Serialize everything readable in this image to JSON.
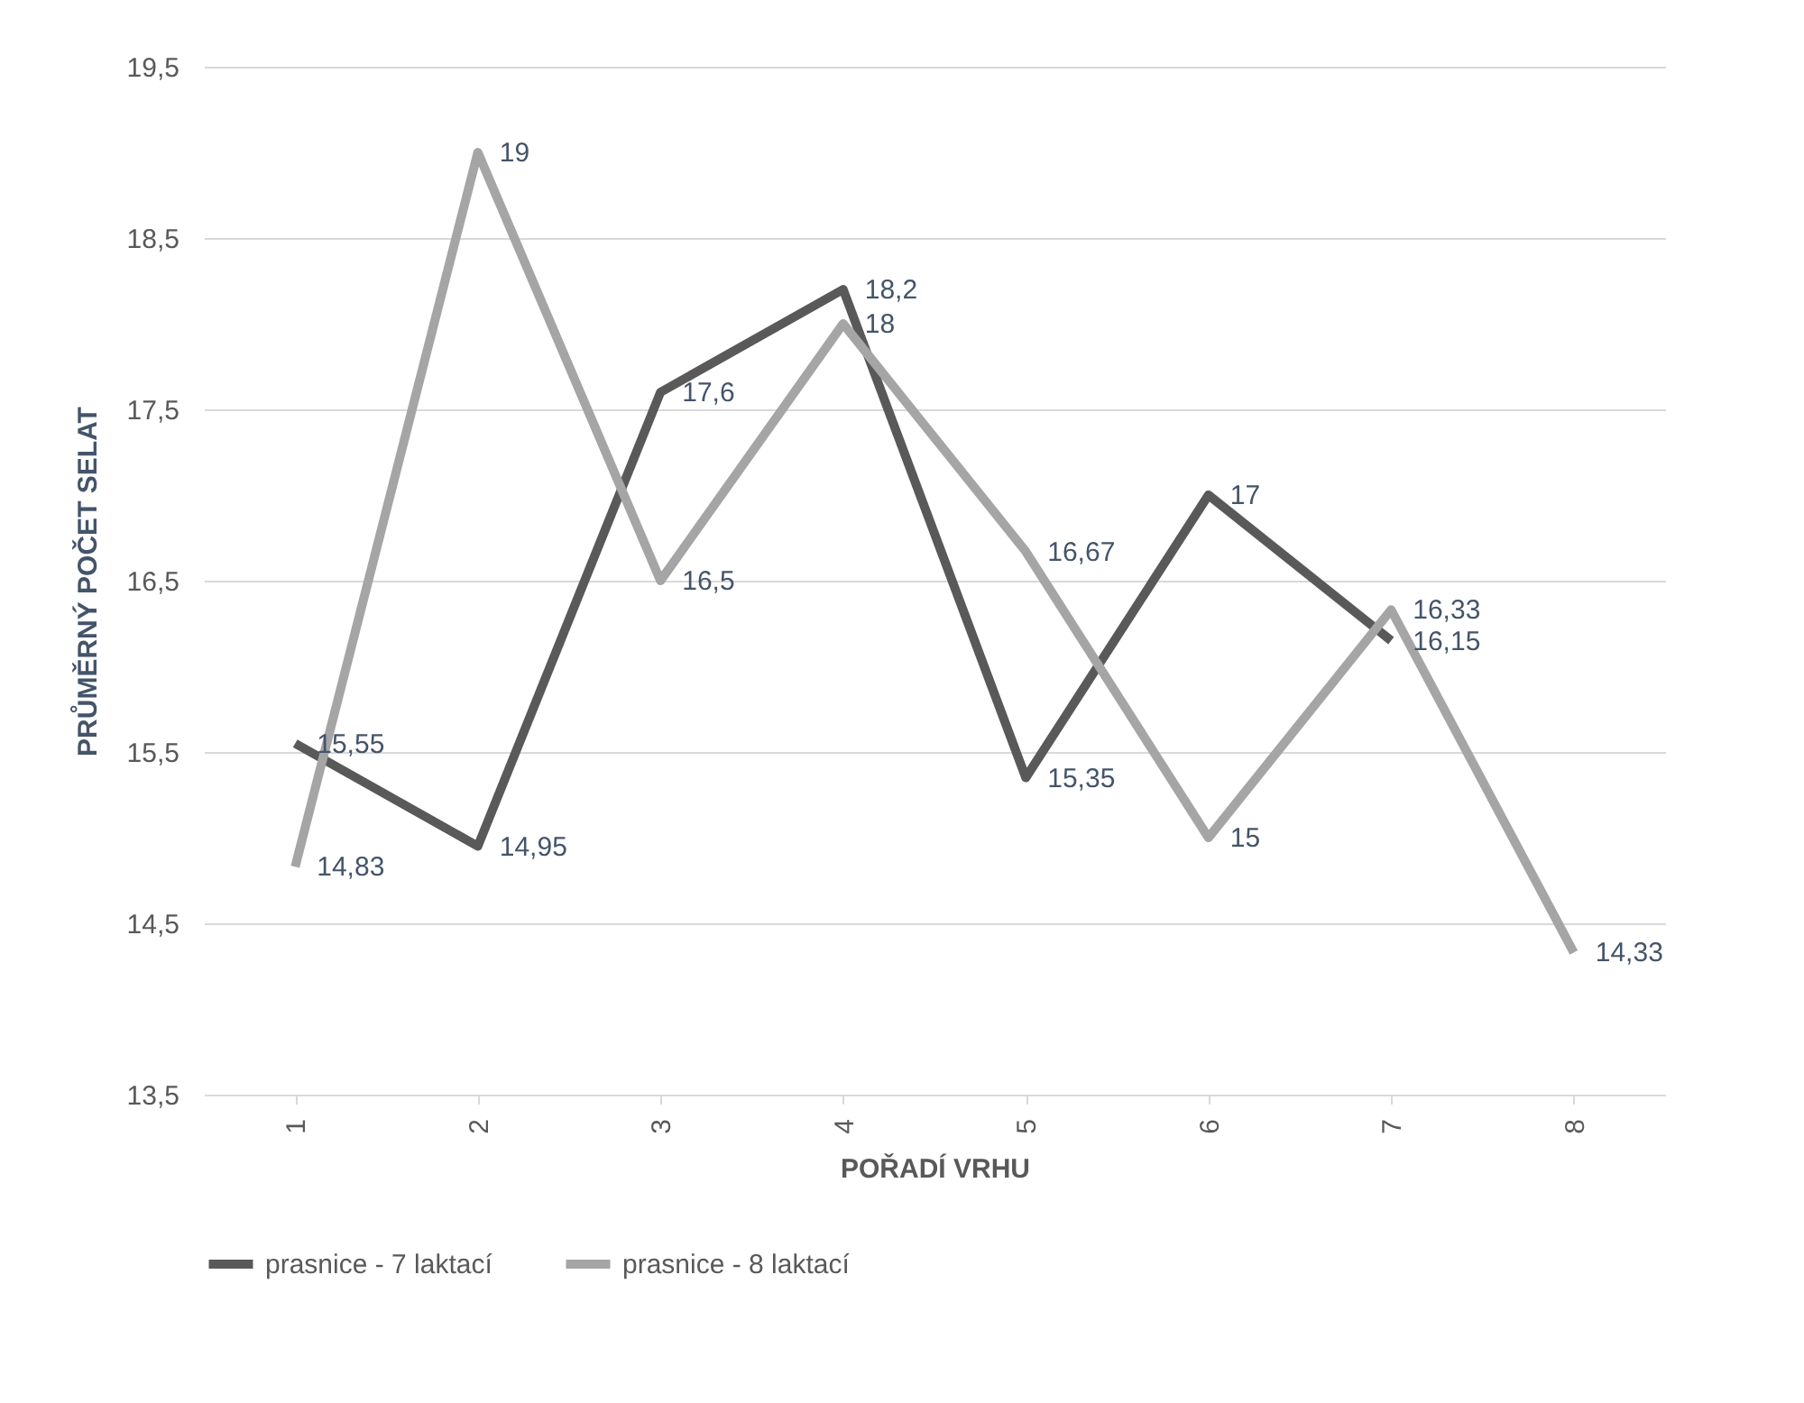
{
  "chart_data": {
    "type": "line",
    "xlabel": "POŘADÍ VRHU",
    "ylabel": "PRŮMĚRNÝ POČET SELAT",
    "categories": [
      "1",
      "2",
      "3",
      "4",
      "5",
      "6",
      "7",
      "8"
    ],
    "series": [
      {
        "name": "prasnice - 7 laktací",
        "color": "#595959",
        "values": [
          15.55,
          14.95,
          17.6,
          18.2,
          15.35,
          17,
          16.15,
          null
        ],
        "value_labels": [
          "15,55",
          "14,95",
          "17,6",
          "18,2",
          "15,35",
          "17",
          "16,15",
          null
        ]
      },
      {
        "name": "prasnice - 8 laktací",
        "color": "#a5a5a5",
        "values": [
          14.83,
          19,
          16.5,
          18,
          16.67,
          15,
          16.33,
          14.33
        ],
        "value_labels": [
          "14,83",
          "19",
          "16,5",
          "18",
          "16,67",
          "15",
          "16,33",
          "14,33"
        ]
      }
    ],
    "ylim": [
      13.5,
      19.5
    ],
    "yticks": [
      {
        "value": 13.5,
        "label": "13,5"
      },
      {
        "value": 14.5,
        "label": "14,5"
      },
      {
        "value": 15.5,
        "label": "15,5"
      },
      {
        "value": 16.5,
        "label": "16,5"
      },
      {
        "value": 17.5,
        "label": "17,5"
      },
      {
        "value": 18.5,
        "label": "18,5"
      },
      {
        "value": 19.5,
        "label": "19,5"
      }
    ],
    "grid": "y",
    "legend": "bottom"
  }
}
